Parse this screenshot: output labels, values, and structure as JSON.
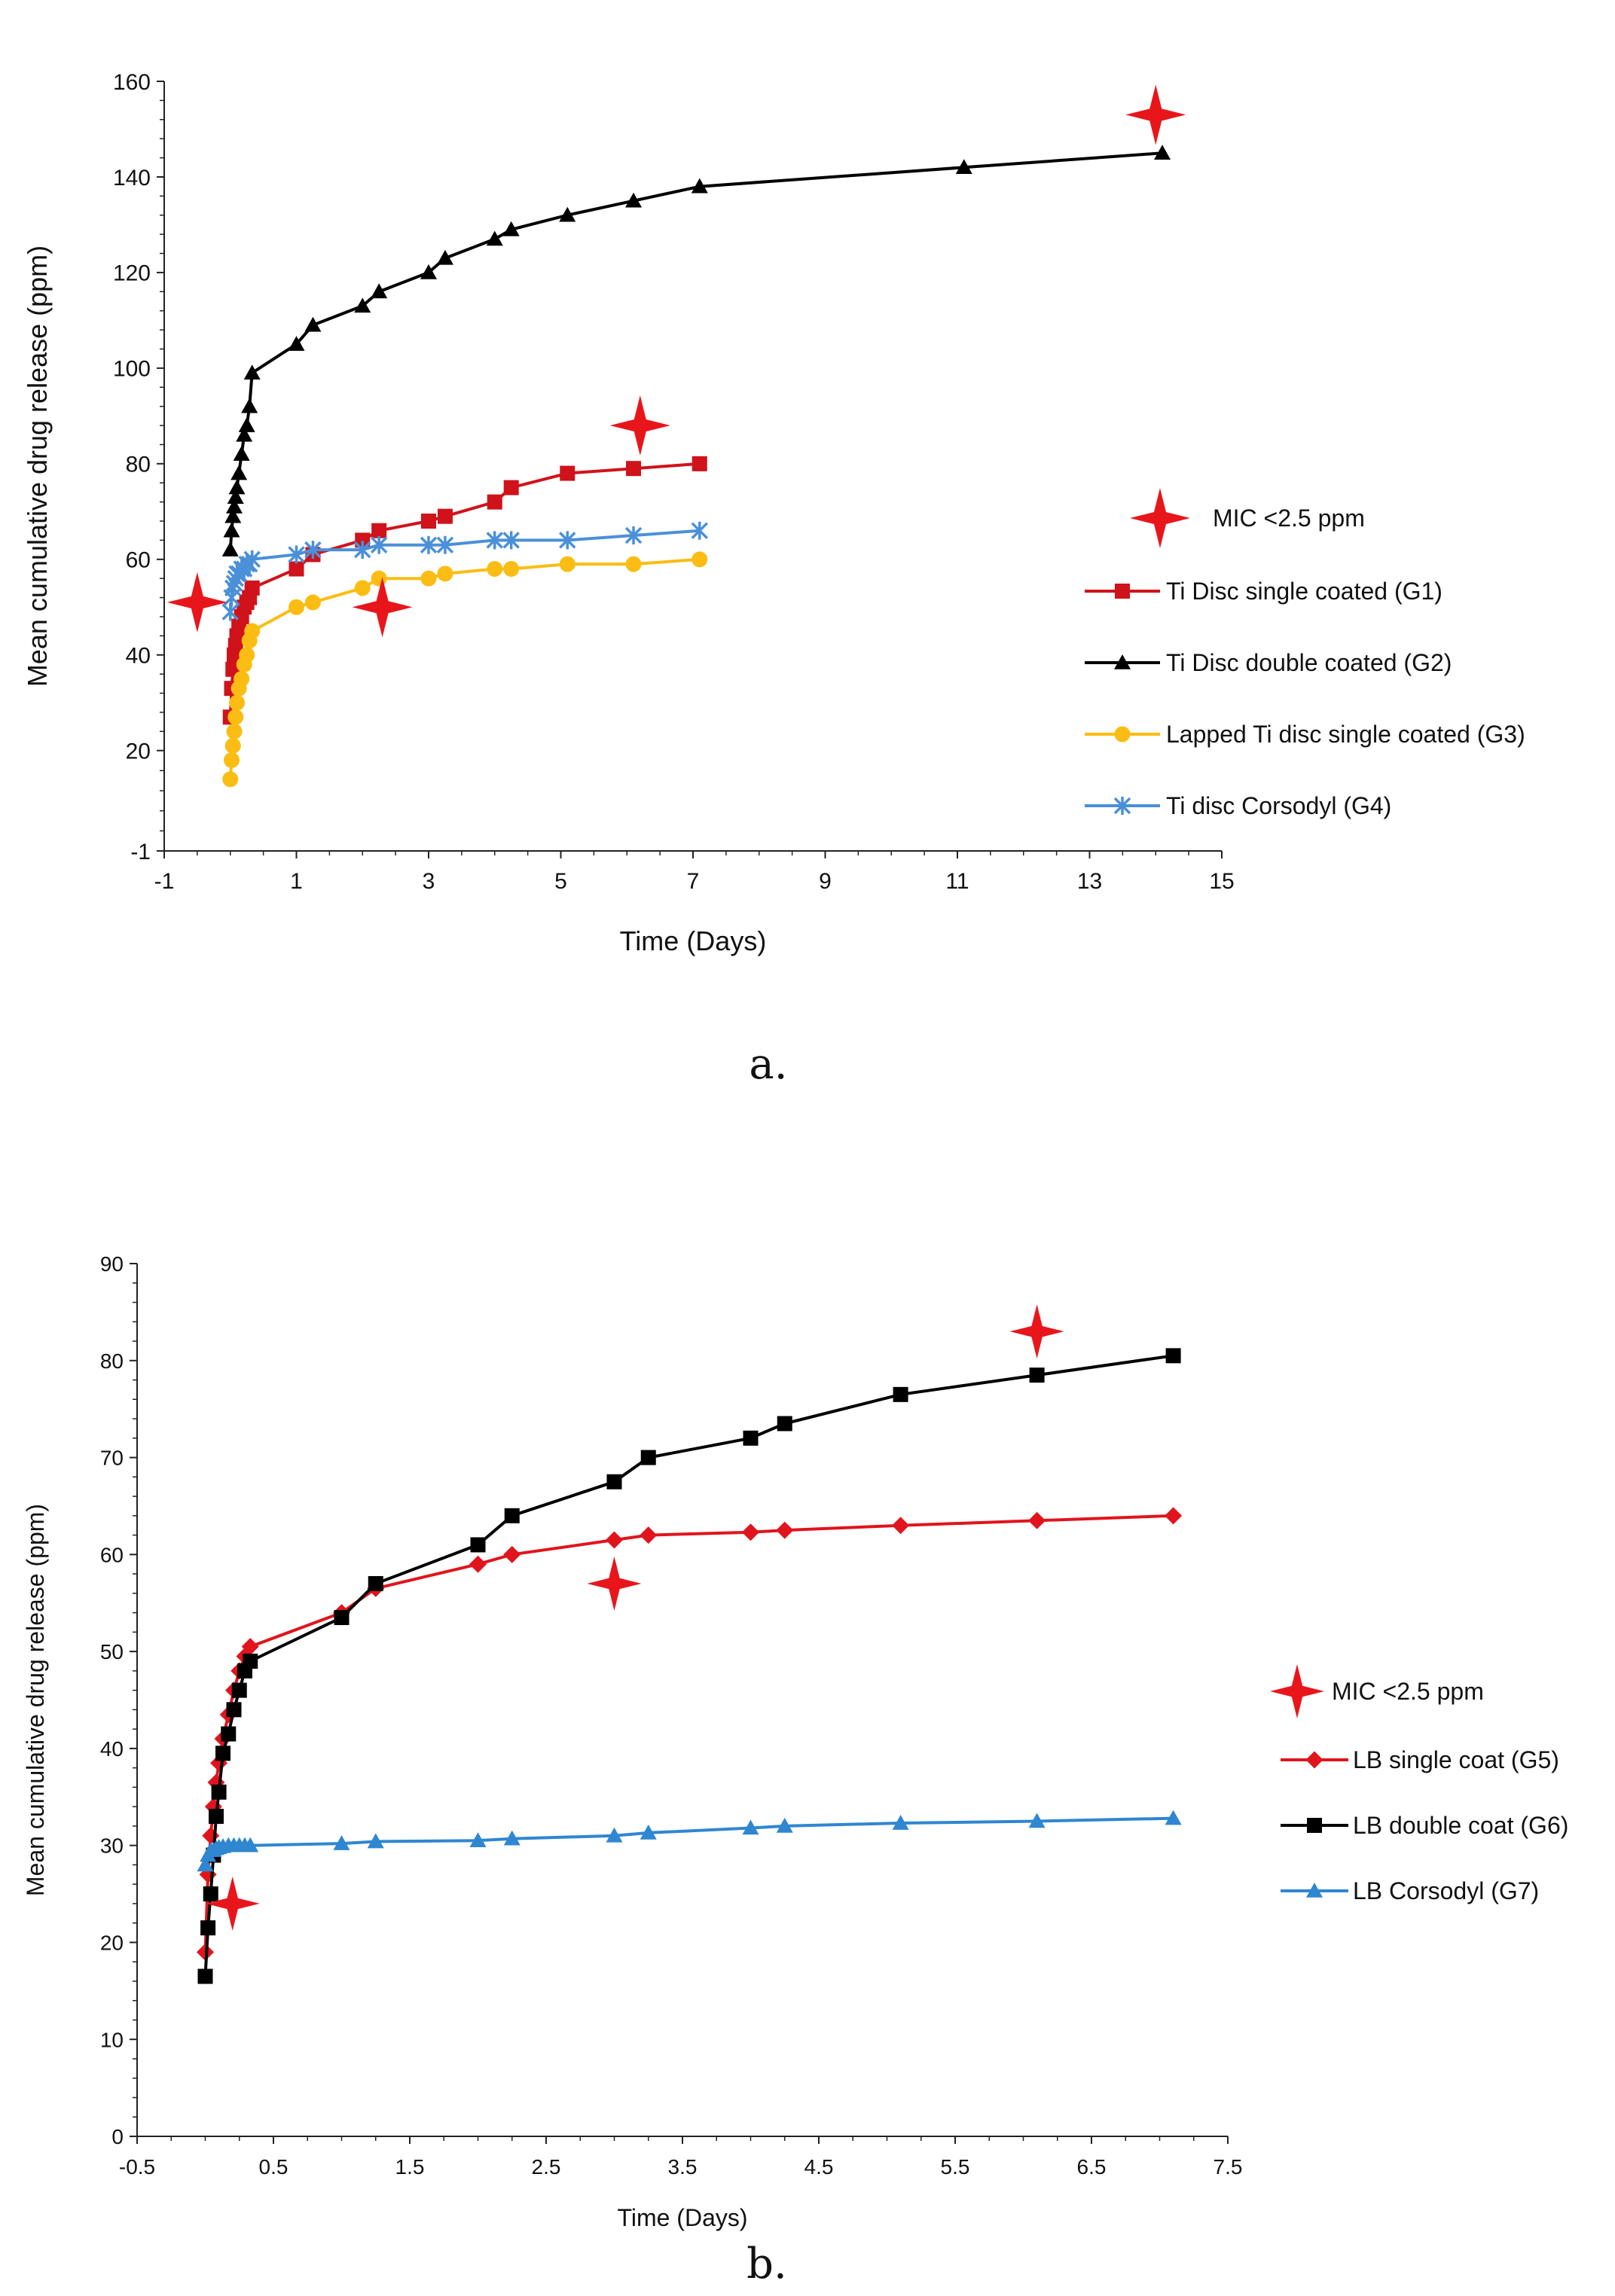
{
  "chart_data": [
    {
      "type": "line",
      "panel_label": "a.",
      "xlabel": "Time (Days)",
      "ylabel": "Mean cumulative drug release (ppm)",
      "xlim": [
        -1,
        15
      ],
      "ylim": [
        -1,
        160
      ],
      "xticks": [
        "-1",
        "1",
        "3",
        "5",
        "7",
        "9",
        "11",
        "13",
        "15"
      ],
      "yticks": [
        "-1",
        "20",
        "40",
        "60",
        "80",
        "100",
        "120",
        "140",
        "160"
      ],
      "grid": false,
      "legend_position": "right",
      "mic_legend": "MIC <2.5 ppm",
      "mic_color": "#e8161b",
      "mic_points": [
        {
          "x": -0.5,
          "y": 51
        },
        {
          "x": 2.3,
          "y": 50
        },
        {
          "x": 6.2,
          "y": 88
        },
        {
          "x": 14.0,
          "y": 153
        }
      ],
      "series": [
        {
          "name": "Ti Disc single coated (G1)",
          "color": "#d0121a",
          "marker": "square",
          "x": [
            0,
            0.02,
            0.04,
            0.06,
            0.08,
            0.1,
            0.13,
            0.17,
            0.21,
            0.25,
            0.29,
            0.33,
            1,
            1.25,
            2,
            2.25,
            3,
            3.25,
            4,
            4.25,
            5.1,
            6.1,
            7.1
          ],
          "values": [
            27,
            33,
            37,
            40,
            42,
            44,
            46,
            48,
            50,
            51,
            52,
            54,
            58,
            61,
            64,
            66,
            68,
            69,
            72,
            75,
            78,
            79,
            80
          ]
        },
        {
          "name": "Ti Disc double coated (G2)",
          "color": "#000000",
          "marker": "triangle",
          "x": [
            0,
            0.02,
            0.04,
            0.06,
            0.08,
            0.1,
            0.13,
            0.17,
            0.21,
            0.25,
            0.29,
            0.33,
            1,
            1.25,
            2,
            2.25,
            3,
            3.25,
            4,
            4.25,
            5.1,
            6.1,
            7.1,
            11.1,
            14.1
          ],
          "values": [
            62,
            66,
            69,
            71,
            73,
            75,
            78,
            82,
            86,
            88,
            92,
            99,
            105,
            109,
            113,
            116,
            120,
            123,
            127,
            129,
            132,
            135,
            138,
            142,
            145
          ]
        },
        {
          "name": "Lapped Ti disc single coated (G3)",
          "color": "#fbbd13",
          "marker": "circle",
          "x": [
            0,
            0.02,
            0.04,
            0.06,
            0.08,
            0.1,
            0.13,
            0.17,
            0.21,
            0.25,
            0.29,
            0.33,
            1,
            1.25,
            2,
            2.25,
            3,
            3.25,
            4,
            4.25,
            5.1,
            6.1,
            7.1
          ],
          "values": [
            14,
            18,
            21,
            24,
            27,
            30,
            33,
            35,
            38,
            40,
            43,
            45,
            50,
            51,
            54,
            56,
            56,
            57,
            58,
            58,
            59,
            59,
            60
          ]
        },
        {
          "name": "Ti disc Corsodyl (G4)",
          "color": "#4a90d9",
          "marker": "asterisk",
          "x": [
            0,
            0.02,
            0.04,
            0.06,
            0.08,
            0.1,
            0.13,
            0.17,
            0.21,
            0.25,
            0.29,
            0.33,
            1,
            1.25,
            2,
            2.25,
            3,
            3.25,
            4,
            4.25,
            5.1,
            6.1,
            7.1
          ],
          "values": [
            49,
            52,
            54,
            55,
            56,
            57,
            57,
            58,
            58,
            59,
            59,
            60,
            61,
            62,
            62,
            63,
            63,
            63,
            64,
            64,
            64,
            65,
            66
          ]
        }
      ]
    },
    {
      "type": "line",
      "panel_label": "b.",
      "xlabel": "Time (Days)",
      "ylabel": "Mean cumulative drug release (ppm)",
      "xlim": [
        -0.5,
        7.5
      ],
      "ylim": [
        0,
        90
      ],
      "xticks": [
        "-0.5",
        "0.5",
        "1.5",
        "2.5",
        "3.5",
        "4.5",
        "5.5",
        "6.5",
        "7.5"
      ],
      "yticks": [
        "0",
        "10",
        "20",
        "30",
        "40",
        "50",
        "60",
        "70",
        "80",
        "90"
      ],
      "grid": false,
      "legend_position": "right",
      "mic_legend": "MIC <2.5 ppm",
      "mic_color": "#e8161b",
      "mic_points": [
        {
          "x": 0.2,
          "y": 24
        },
        {
          "x": 3.0,
          "y": 57
        },
        {
          "x": 6.1,
          "y": 83
        }
      ],
      "series": [
        {
          "name": "LB single coat (G5)",
          "color": "#e1141d",
          "marker": "diamond",
          "x": [
            0,
            0.02,
            0.04,
            0.06,
            0.08,
            0.1,
            0.13,
            0.17,
            0.21,
            0.25,
            0.29,
            0.33,
            1,
            1.25,
            2,
            2.25,
            3,
            3.25,
            4,
            4.25,
            5.1,
            6.1,
            7.1
          ],
          "values": [
            19,
            27,
            31,
            34,
            36.5,
            38.5,
            41,
            43.5,
            46,
            48,
            49.5,
            50.5,
            54,
            56.5,
            59,
            60,
            61.5,
            62,
            62.3,
            62.5,
            63,
            63.5,
            64
          ]
        },
        {
          "name": "LB double coat (G6)",
          "color": "#000000",
          "marker": "square",
          "x": [
            0,
            0.02,
            0.04,
            0.06,
            0.08,
            0.1,
            0.13,
            0.17,
            0.21,
            0.25,
            0.29,
            0.33,
            1,
            1.25,
            2,
            2.25,
            3,
            3.25,
            4,
            4.25,
            5.1,
            6.1,
            7.1
          ],
          "values": [
            16.5,
            21.5,
            25,
            29,
            33,
            35.5,
            39.5,
            41.5,
            44,
            46,
            48,
            49,
            53.5,
            57,
            61,
            64,
            67.5,
            70,
            72,
            73.5,
            76.5,
            78.5,
            80.5
          ]
        },
        {
          "name": "LB Corsodyl (G7)",
          "color": "#2f86d1",
          "marker": "triangle",
          "x": [
            0,
            0.02,
            0.04,
            0.06,
            0.08,
            0.1,
            0.13,
            0.17,
            0.21,
            0.25,
            0.29,
            0.33,
            1,
            1.25,
            2,
            2.25,
            3,
            3.25,
            4,
            4.25,
            5.1,
            6.1,
            7.1
          ],
          "values": [
            28,
            29,
            29.5,
            29.5,
            29.7,
            29.8,
            29.9,
            30,
            30,
            30,
            30,
            30,
            30.2,
            30.4,
            30.5,
            30.7,
            31,
            31.3,
            31.8,
            32,
            32.3,
            32.5,
            32.8
          ]
        }
      ]
    }
  ]
}
